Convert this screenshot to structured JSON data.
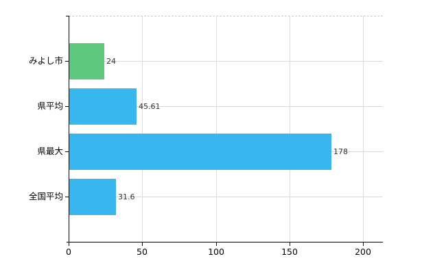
{
  "chart_data": {
    "type": "bar",
    "orientation": "horizontal",
    "title": "",
    "xlabel": "",
    "ylabel": "",
    "categories": [
      "みよし市",
      "県平均",
      "県最大",
      "全国平均"
    ],
    "values": [
      24,
      45.61,
      178,
      31.6
    ],
    "value_labels": [
      "24",
      "45.61",
      "178",
      "31.6"
    ],
    "bar_colors": [
      "#5fc87f",
      "#38b6ee",
      "#38b6ee",
      "#38b6ee"
    ],
    "x_ticks": [
      "0",
      "50",
      "100",
      "150",
      "200"
    ],
    "x_tick_values": [
      0,
      50,
      100,
      150,
      200
    ],
    "xlim": [
      0,
      213.5
    ],
    "grid": "on",
    "legend": "none"
  },
  "colors": {
    "bar_blue": "#38b6ee",
    "bar_green": "#5fc87f",
    "vertical_grid": "#dcdcdc",
    "horizontal_grid": "#d5dbd5",
    "plot_top_border": "#c8c8c8",
    "axis": "#000000",
    "background": "#ffffff"
  }
}
